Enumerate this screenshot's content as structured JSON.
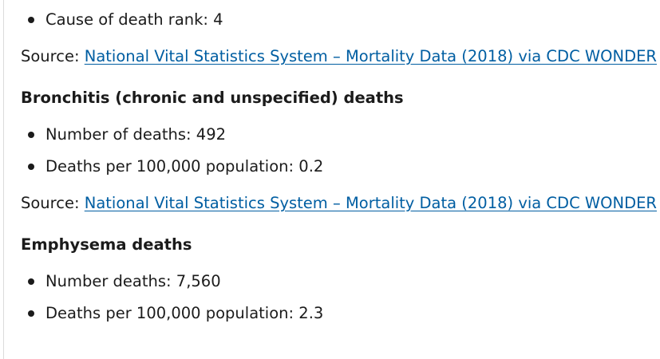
{
  "section_top": {
    "items": [
      {
        "label": "Cause of death rank: 4"
      }
    ]
  },
  "source_1": {
    "prefix": "Source:",
    "link_text": "National Vital Statistics System – Mortality Data (2018) via CDC WONDER"
  },
  "bronchitis": {
    "heading": "Bronchitis (chronic and unspecified) deaths",
    "items": [
      {
        "label": "Number of deaths: 492"
      },
      {
        "label": "Deaths per 100,000 population: 0.2"
      }
    ]
  },
  "source_2": {
    "prefix": "Source:",
    "link_text": "National Vital Statistics System – Mortality Data (2018) via CDC WONDER"
  },
  "emphysema": {
    "heading": "Emphysema deaths",
    "items": [
      {
        "label": "Number deaths: 7,560"
      },
      {
        "label": "Deaths per 100,000 population: 2.3"
      }
    ]
  },
  "colors": {
    "link": "#005ea2",
    "text": "#1b1b1b"
  }
}
